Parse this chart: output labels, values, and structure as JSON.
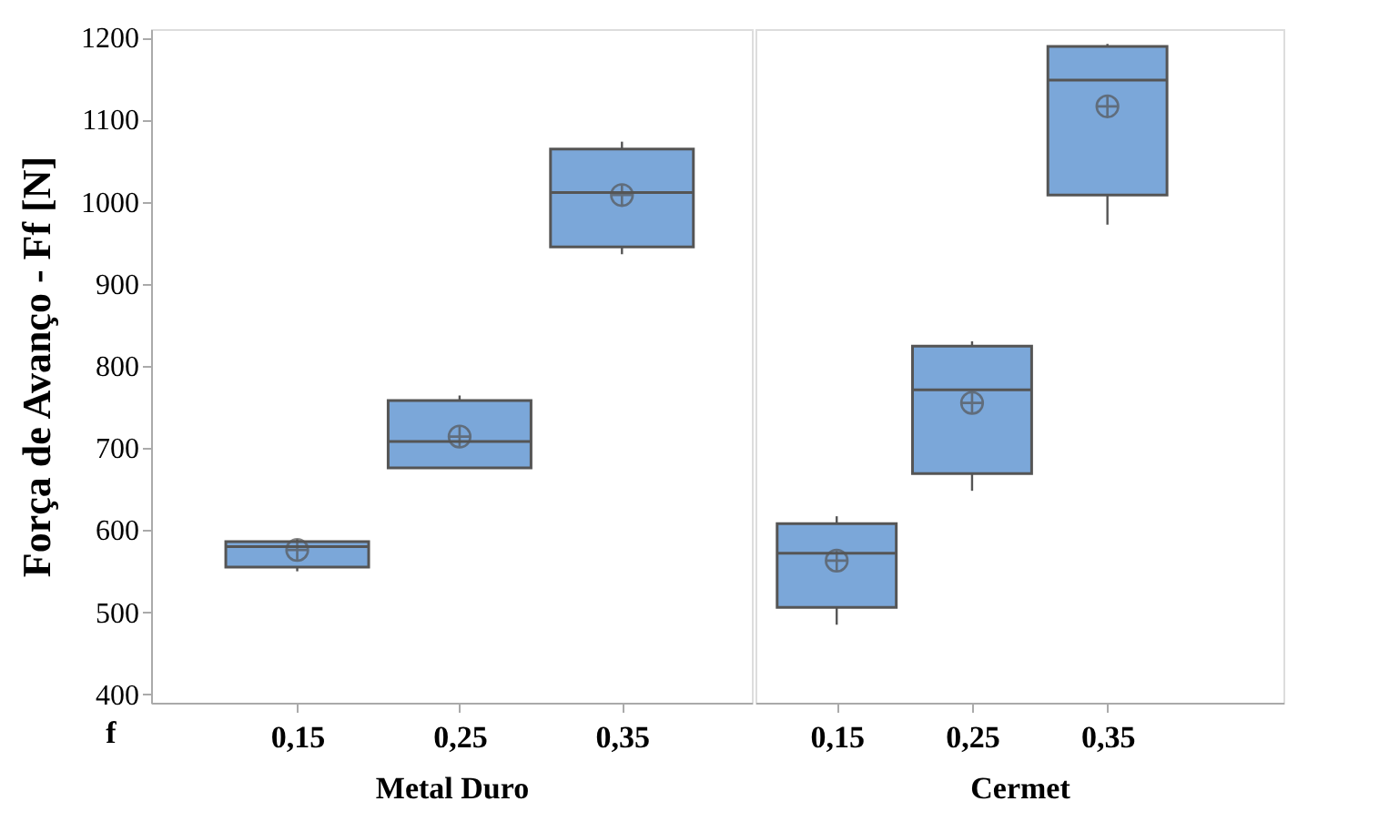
{
  "chart_data": [
    {
      "type": "box",
      "ylabel": "Força de Avanço - Ff [N]",
      "xlabel": "Metal Duro",
      "categories": [
        "0,15",
        "0,25",
        "0,35"
      ],
      "color": "#7ba7d9",
      "boxes": [
        {
          "low": 550,
          "q1": 555,
          "median": 580,
          "q3": 586,
          "high": 589,
          "mean": 576
        },
        {
          "low": 676,
          "q1": 676,
          "median": 708,
          "q3": 758,
          "high": 764,
          "mean": 714
        },
        {
          "low": 936,
          "q1": 945,
          "median": 1011,
          "q3": 1064,
          "high": 1073,
          "mean": 1008
        }
      ],
      "ylim": [
        390,
        1210
      ],
      "yticks": [
        400,
        500,
        600,
        700,
        800,
        900,
        1000,
        1100,
        1200
      ],
      "grid": false,
      "annotations": [
        "f"
      ]
    },
    {
      "type": "box",
      "xlabel": "Cermet",
      "categories": [
        "0,15",
        "0,25",
        "0,35"
      ],
      "color": "#7ba7d9",
      "boxes": [
        {
          "low": 485,
          "q1": 506,
          "median": 572,
          "q3": 608,
          "high": 617,
          "mean": 563
        },
        {
          "low": 648,
          "q1": 669,
          "median": 771,
          "q3": 824,
          "high": 830,
          "mean": 755
        },
        {
          "low": 972,
          "q1": 1008,
          "median": 1148,
          "q3": 1189,
          "high": 1192,
          "mean": 1116
        }
      ],
      "ylim": [
        390,
        1210
      ],
      "yticks": [
        400,
        500,
        600,
        700,
        800,
        900,
        1000,
        1100,
        1200
      ],
      "grid": false,
      "tick_labels": "x"
    }
  ]
}
